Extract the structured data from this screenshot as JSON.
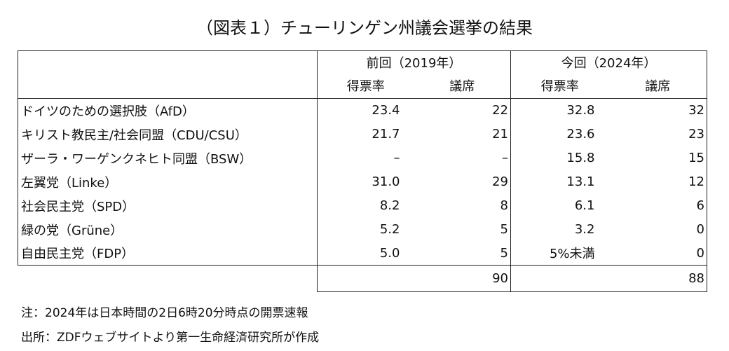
{
  "title": "（図表１）チューリンゲン州議会選挙の結果",
  "table": {
    "group_headers": [
      "前回（2019年）",
      "今回（2024年）"
    ],
    "sub_headers": [
      "得票率",
      "議席",
      "得票率",
      "議席"
    ],
    "rows": [
      [
        "ドイツのための選択肢（AfD）",
        "23.4",
        "22",
        "32.8",
        "32"
      ],
      [
        "キリスト教民主/社会同盟（CDU/CSU）",
        "21.7",
        "21",
        "23.6",
        "23"
      ],
      [
        "ザーラ・ワーゲンクネヒト同盟（BSW）",
        "–",
        "–",
        "15.8",
        "15"
      ],
      [
        "左翼党（Linke）",
        "31.0",
        "29",
        "13.1",
        "12"
      ],
      [
        "社会民主党（SPD）",
        "8.2",
        "8",
        "6.1",
        "6"
      ],
      [
        "緑の党（Grüne）",
        "5.2",
        "5",
        "3.2",
        "0"
      ],
      [
        "自由民主党（FDP）",
        "5.0",
        "5",
        "5%未満",
        "0"
      ]
    ],
    "totals": [
      "90",
      "88"
    ]
  },
  "notes": [
    "注：2024年は日本時間の2日6時20分時点の開票速報",
    "出所：ZDFウェブサイトより第一生命経済研究所が作成"
  ]
}
